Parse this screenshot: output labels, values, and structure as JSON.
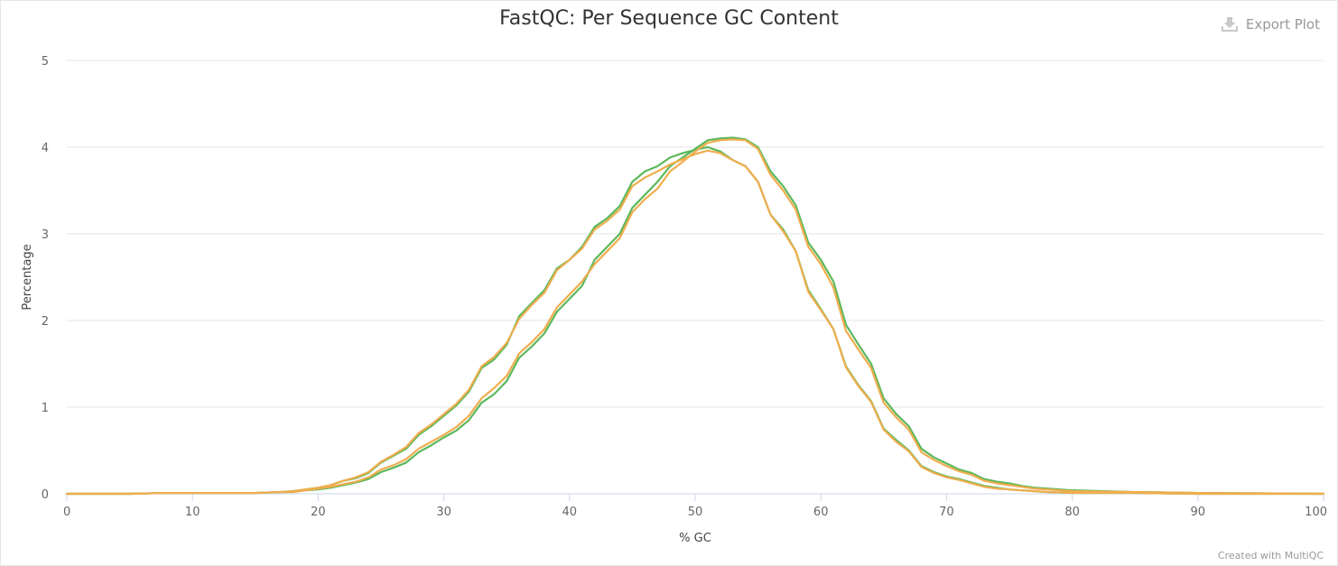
{
  "export_label": "Export Plot",
  "credit": "Created with MultiQC",
  "colors": {
    "green": "#5cb85c",
    "orange": "#f0ad4e",
    "grid": "#e6e6e6",
    "axis": "#ccd6eb"
  },
  "chart_data": {
    "type": "line",
    "title": "FastQC: Per Sequence GC Content",
    "xlabel": "% GC",
    "ylabel": "Percentage",
    "xlim": [
      0,
      100
    ],
    "ylim": [
      0,
      5
    ],
    "xticks": [
      0,
      10,
      20,
      30,
      40,
      50,
      60,
      70,
      80,
      90,
      100
    ],
    "yticks": [
      0,
      1,
      2,
      3,
      4,
      5
    ],
    "grid": true,
    "series": [
      {
        "color": "#5cb85c",
        "x": [
          0,
          5,
          8,
          12,
          15,
          17,
          18,
          19,
          20,
          21,
          22,
          23,
          24,
          25,
          26,
          27,
          28,
          29,
          30,
          31,
          32,
          33,
          34,
          35,
          36,
          37,
          38,
          39,
          40,
          41,
          42,
          43,
          44,
          45,
          46,
          47,
          48,
          49,
          50,
          51,
          52,
          53,
          54,
          55,
          56,
          57,
          58,
          59,
          60,
          61,
          62,
          63,
          64,
          65,
          66,
          67,
          68,
          69,
          70,
          71,
          72,
          73,
          74,
          75,
          76,
          77,
          78,
          80,
          85,
          90,
          100
        ],
        "y": [
          0,
          0,
          0.01,
          0.01,
          0.01,
          0.02,
          0.03,
          0.05,
          0.07,
          0.1,
          0.15,
          0.18,
          0.24,
          0.36,
          0.44,
          0.52,
          0.68,
          0.78,
          0.9,
          1.02,
          1.18,
          1.45,
          1.55,
          1.72,
          2.05,
          2.2,
          2.35,
          2.6,
          2.7,
          2.85,
          3.08,
          3.18,
          3.32,
          3.6,
          3.72,
          3.78,
          3.88,
          3.93,
          3.97,
          4.0,
          3.95,
          3.85,
          3.78,
          3.6,
          3.22,
          3.05,
          2.8,
          2.35,
          2.13,
          1.9,
          1.47,
          1.25,
          1.07,
          0.75,
          0.62,
          0.5,
          0.32,
          0.25,
          0.2,
          0.17,
          0.13,
          0.09,
          0.07,
          0.05,
          0.04,
          0.03,
          0.02,
          0.01,
          0.01,
          0,
          0
        ]
      },
      {
        "color": "#5cb85c",
        "x": [
          0,
          5,
          8,
          12,
          15,
          17,
          18,
          19,
          20,
          21,
          22,
          23,
          24,
          25,
          26,
          27,
          28,
          29,
          30,
          31,
          32,
          33,
          34,
          35,
          36,
          37,
          38,
          39,
          40,
          41,
          42,
          43,
          44,
          45,
          46,
          47,
          48,
          49,
          50,
          51,
          52,
          53,
          54,
          55,
          56,
          57,
          58,
          59,
          60,
          61,
          62,
          63,
          64,
          65,
          66,
          67,
          68,
          69,
          70,
          71,
          72,
          73,
          74,
          75,
          76,
          77,
          78,
          80,
          85,
          90,
          100
        ],
        "y": [
          0,
          0,
          0.01,
          0.01,
          0.01,
          0.02,
          0.02,
          0.04,
          0.05,
          0.07,
          0.1,
          0.13,
          0.17,
          0.25,
          0.3,
          0.36,
          0.48,
          0.56,
          0.65,
          0.73,
          0.85,
          1.05,
          1.15,
          1.3,
          1.57,
          1.7,
          1.85,
          2.1,
          2.25,
          2.4,
          2.7,
          2.85,
          3.0,
          3.3,
          3.45,
          3.6,
          3.78,
          3.88,
          3.98,
          4.08,
          4.1,
          4.11,
          4.09,
          4.0,
          3.72,
          3.55,
          3.33,
          2.9,
          2.7,
          2.45,
          1.95,
          1.72,
          1.5,
          1.1,
          0.92,
          0.78,
          0.52,
          0.42,
          0.35,
          0.28,
          0.24,
          0.17,
          0.14,
          0.12,
          0.09,
          0.07,
          0.06,
          0.04,
          0.02,
          0.01,
          0
        ]
      },
      {
        "color": "#f0ad4e",
        "x": [
          0,
          5,
          8,
          12,
          15,
          17,
          18,
          19,
          20,
          21,
          22,
          23,
          24,
          25,
          26,
          27,
          28,
          29,
          30,
          31,
          32,
          33,
          34,
          35,
          36,
          37,
          38,
          39,
          40,
          41,
          42,
          43,
          44,
          45,
          46,
          47,
          48,
          49,
          50,
          51,
          52,
          53,
          54,
          55,
          56,
          57,
          58,
          59,
          60,
          61,
          62,
          63,
          64,
          65,
          66,
          67,
          68,
          69,
          70,
          71,
          72,
          73,
          74,
          75,
          76,
          77,
          78,
          80,
          85,
          90,
          100
        ],
        "y": [
          0,
          0,
          0.01,
          0.01,
          0.01,
          0.02,
          0.03,
          0.05,
          0.07,
          0.1,
          0.15,
          0.19,
          0.25,
          0.37,
          0.45,
          0.54,
          0.7,
          0.8,
          0.92,
          1.04,
          1.2,
          1.47,
          1.58,
          1.74,
          2.02,
          2.18,
          2.32,
          2.58,
          2.7,
          2.83,
          3.05,
          3.15,
          3.28,
          3.55,
          3.65,
          3.72,
          3.8,
          3.86,
          3.92,
          3.96,
          3.93,
          3.85,
          3.78,
          3.6,
          3.22,
          3.03,
          2.8,
          2.33,
          2.12,
          1.9,
          1.46,
          1.24,
          1.06,
          0.74,
          0.6,
          0.49,
          0.31,
          0.24,
          0.19,
          0.16,
          0.12,
          0.08,
          0.06,
          0.05,
          0.04,
          0.03,
          0.02,
          0.01,
          0.01,
          0,
          0
        ]
      },
      {
        "color": "#f0ad4e",
        "x": [
          0,
          5,
          8,
          12,
          15,
          17,
          18,
          19,
          20,
          21,
          22,
          23,
          24,
          25,
          26,
          27,
          28,
          29,
          30,
          31,
          32,
          33,
          34,
          35,
          36,
          37,
          38,
          39,
          40,
          41,
          42,
          43,
          44,
          45,
          46,
          47,
          48,
          49,
          50,
          51,
          52,
          53,
          54,
          55,
          56,
          57,
          58,
          59,
          60,
          61,
          62,
          63,
          64,
          65,
          66,
          67,
          68,
          69,
          70,
          71,
          72,
          73,
          74,
          75,
          76,
          77,
          78,
          80,
          85,
          90,
          100
        ],
        "y": [
          0,
          0,
          0.01,
          0.01,
          0.01,
          0.02,
          0.02,
          0.04,
          0.06,
          0.08,
          0.11,
          0.14,
          0.19,
          0.28,
          0.33,
          0.4,
          0.52,
          0.6,
          0.68,
          0.77,
          0.9,
          1.1,
          1.22,
          1.36,
          1.62,
          1.75,
          1.9,
          2.15,
          2.3,
          2.45,
          2.65,
          2.8,
          2.95,
          3.25,
          3.4,
          3.52,
          3.72,
          3.83,
          3.95,
          4.05,
          4.08,
          4.09,
          4.08,
          3.98,
          3.68,
          3.5,
          3.28,
          2.85,
          2.65,
          2.38,
          1.88,
          1.66,
          1.45,
          1.05,
          0.88,
          0.74,
          0.48,
          0.39,
          0.32,
          0.26,
          0.22,
          0.15,
          0.12,
          0.1,
          0.08,
          0.06,
          0.05,
          0.03,
          0.02,
          0.01,
          0
        ]
      }
    ]
  }
}
